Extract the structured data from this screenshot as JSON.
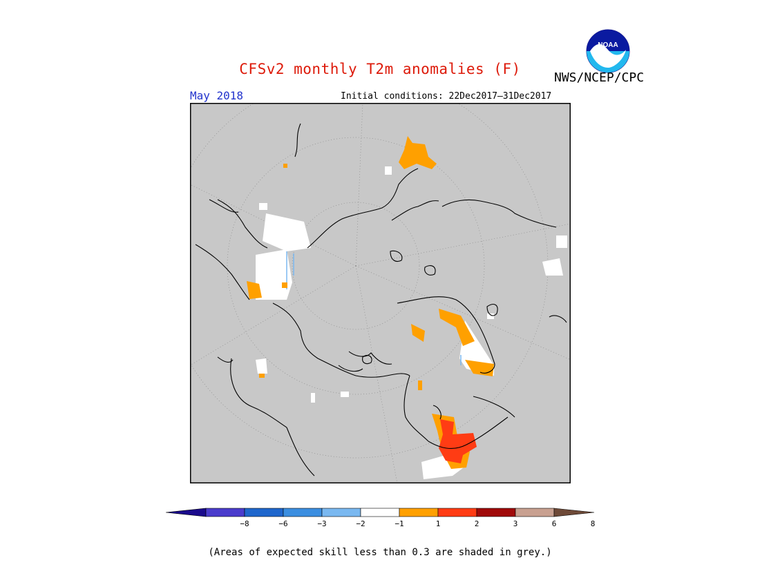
{
  "title": "CFSv2 monthly T2m anomalies (F)",
  "agency": "NWS/NCEP/CPC",
  "logo_text": "NOAA",
  "month": "May 2018",
  "initial_conditions": "Initial conditions: 22Dec2017–31Dec2017",
  "footnote": "(Areas of expected skill less than 0.3 are shaded in grey.)",
  "colors": {
    "title": "#dd1a0a",
    "month": "#2233cc",
    "low_skill_grey": "#c8c8c8",
    "coast": "#000000"
  },
  "legend": {
    "ticks": [
      "−8",
      "−6",
      "−3",
      "−2",
      "−1",
      "1",
      "2",
      "3",
      "6",
      "8"
    ],
    "colors": [
      "#1a0a8c",
      "#4a3ccc",
      "#1f66cc",
      "#3b8ee0",
      "#7ab8f0",
      "#ffffff",
      "#ffa000",
      "#ff3c14",
      "#a00a0a",
      "#c8a090",
      "#6e4a38"
    ]
  }
}
